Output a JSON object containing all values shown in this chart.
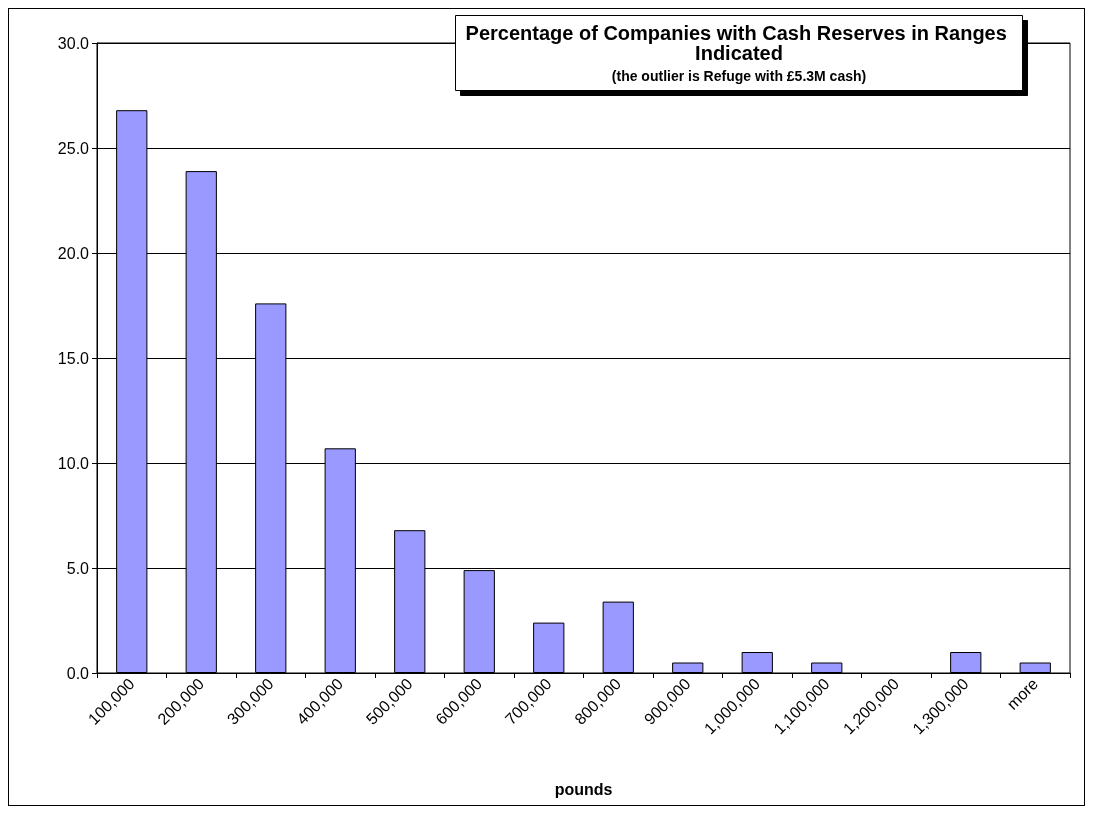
{
  "chart_data": {
    "type": "bar",
    "title": "Percentage of Companies with Cash Reserves in Ranges Indicated",
    "subtitle": "(the outlier is Refuge with £5.3M cash)",
    "xlabel": "pounds",
    "categories": [
      "100,000",
      "200,000",
      "300,000",
      "400,000",
      "500,000",
      "600,000",
      "700,000",
      "800,000",
      "900,000",
      "1,000,000",
      "1,100,000",
      "1,200,000",
      "1,300,000",
      "more"
    ],
    "values": [
      26.8,
      23.9,
      17.6,
      10.7,
      6.8,
      4.9,
      2.4,
      3.4,
      0.5,
      1.0,
      0.5,
      0,
      1.0,
      0.5
    ],
    "color": "#9999ff",
    "ylim": [
      0,
      30
    ],
    "yticks": [
      {
        "value": 0,
        "label": "0.0"
      },
      {
        "value": 5,
        "label": "5.0"
      },
      {
        "value": 10,
        "label": "10.0"
      },
      {
        "value": 15,
        "label": "15.0"
      },
      {
        "value": 20,
        "label": "20.0"
      },
      {
        "value": 25,
        "label": "25.0"
      },
      {
        "value": 30,
        "label": "30.0"
      }
    ],
    "grid": "y"
  }
}
